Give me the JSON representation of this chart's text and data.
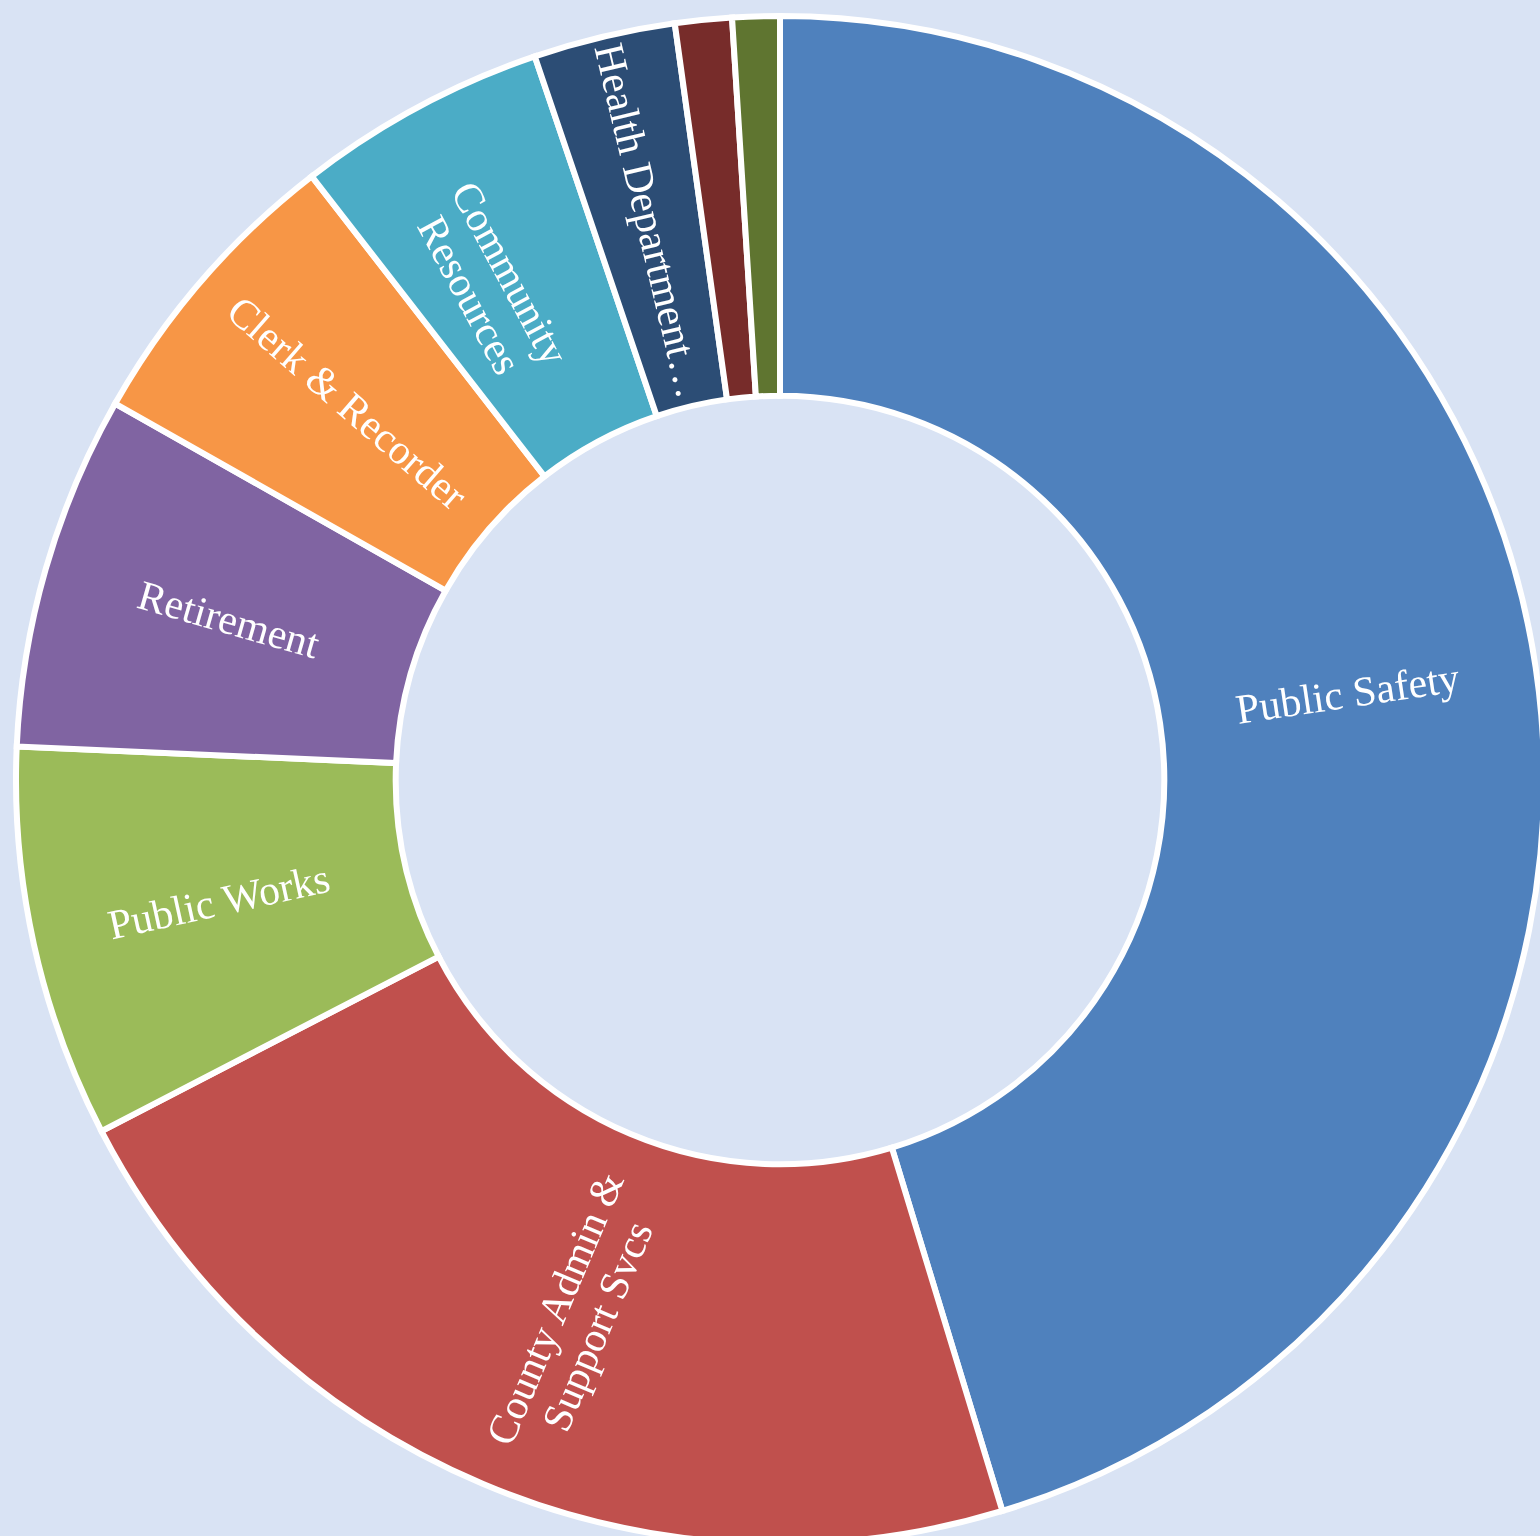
{
  "chart_data": {
    "type": "donut",
    "categories": [
      "Public Safety",
      "County Admin &\nSupport Svcs",
      "Public Works",
      "Retirement",
      "Clerk & Recorder",
      "Community\nResources",
      "Health Department…",
      null,
      null
    ],
    "values": [
      45.3,
      22.1,
      8.3,
      7.5,
      6.3,
      5.3,
      3.0,
      1.2,
      1.0
    ],
    "colors": [
      "#4f81bd",
      "#c0504d",
      "#9bbb59",
      "#8064a2",
      "#f79646",
      "#4bacc6",
      "#2c4d75",
      "#772c2a",
      "#5f7530"
    ]
  }
}
